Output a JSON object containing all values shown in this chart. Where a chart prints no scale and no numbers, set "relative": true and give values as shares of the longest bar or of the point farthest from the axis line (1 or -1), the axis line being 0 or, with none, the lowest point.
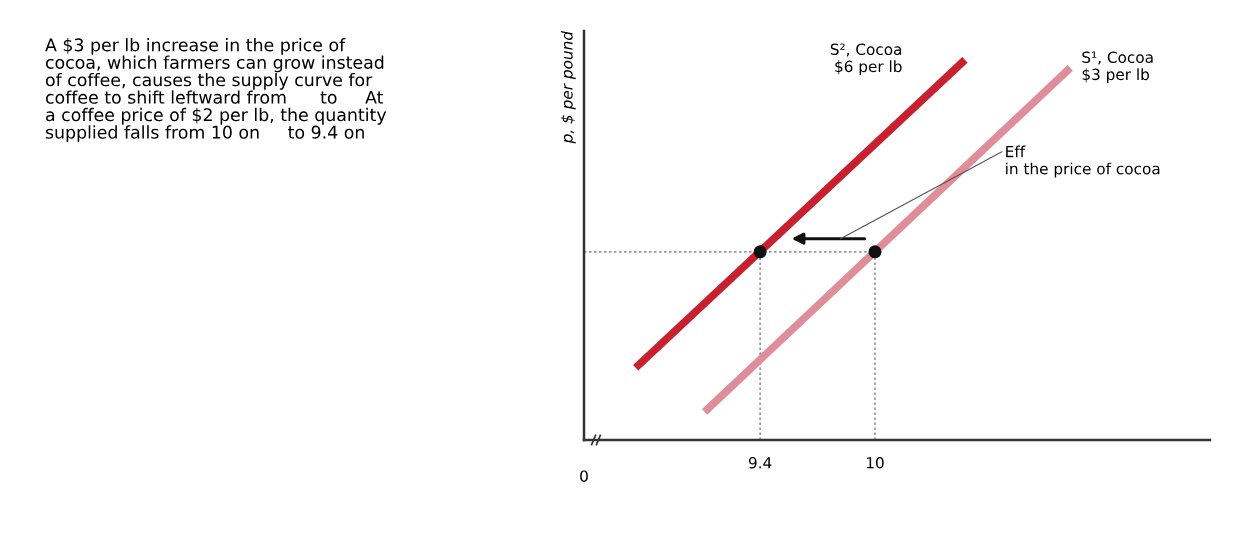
{
  "chart_data": {
    "type": "line",
    "ylabel": "p, $ per pound",
    "relative": true,
    "xlim": [
      8.48,
      11.75
    ],
    "xticks": [
      9.4,
      10
    ],
    "tick_labels": "x",
    "grid": false,
    "legend": false,
    "ref_lines": [
      {
        "axis": "x",
        "value": 9.4,
        "color": "#999999",
        "line_style": "dotted"
      },
      {
        "axis": "x",
        "value": 10,
        "color": "#999999",
        "line_style": "dotted"
      },
      {
        "axis": "y",
        "value": 0.495,
        "color": "#999999",
        "line_style": "dotted"
      }
    ],
    "series": [
      {
        "name": "S², Cocoa\n$6 per lb",
        "color": "#c8202e",
        "x": [
          8.75,
          10.47
        ],
        "values": [
          0.19,
          1.0
        ]
      },
      {
        "name": "S¹, Cocoa\n$3 per lb",
        "color": "#e08d9a",
        "x": [
          9.11,
          11.02
        ],
        "values": [
          0.074,
          0.979
        ]
      },
      {
        "type": "scatter",
        "color": "#111111",
        "marker": "circle",
        "x": [
          9.4,
          10
        ],
        "values": [
          0.495,
          0.495
        ]
      }
    ],
    "annotations": [
      "A $3 per lb increase in the price of\ncocoa, which farmers can grow instead\nof coffee, causes the supply curve for\ncoffee to shift leftward from      to     At\na coffee price of $2 per lb, the quantity\nsupplied falls from 10 on     to 9.4 on",
      "Eff\nin the price of cocoa",
      "0"
    ]
  }
}
